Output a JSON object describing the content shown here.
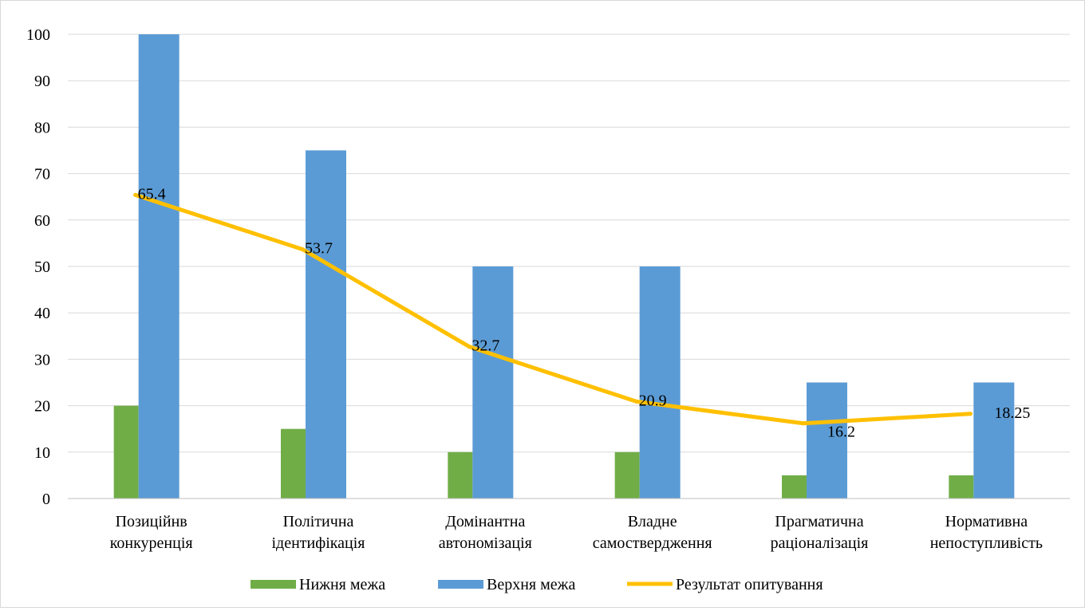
{
  "chart_data": {
    "type": "bar",
    "categories": [
      [
        "Позиційнв",
        "конкуренція"
      ],
      [
        "Політична",
        "ідентифікація"
      ],
      [
        "Домінантна",
        "автономізація"
      ],
      [
        "Владне",
        "самоствердження"
      ],
      [
        "Прагматична",
        "раціоналізація"
      ],
      [
        "Нормативна",
        "непоступливість"
      ]
    ],
    "series": [
      {
        "name": "Нижня межа",
        "kind": "bar",
        "color": "#70ad47",
        "values": [
          20,
          15,
          10,
          10,
          5,
          5
        ]
      },
      {
        "name": "Верхня межа",
        "kind": "bar",
        "color": "#5b9bd5",
        "values": [
          100,
          75,
          50,
          50,
          25,
          25
        ]
      },
      {
        "name": "Результат опитування",
        "kind": "line",
        "color": "#ffc000",
        "values": [
          65.4,
          53.7,
          32.7,
          20.9,
          16.2,
          18.25
        ]
      }
    ],
    "data_labels": [
      "65.4",
      "53.7",
      "32.7",
      "20.9",
      "16.2",
      "18.25"
    ],
    "y_ticks": [
      0,
      10,
      20,
      30,
      40,
      50,
      60,
      70,
      80,
      90,
      100
    ],
    "ylim": [
      0,
      100
    ],
    "grid": true,
    "legend_position": "bottom",
    "title": "",
    "xlabel": "",
    "ylabel": ""
  }
}
